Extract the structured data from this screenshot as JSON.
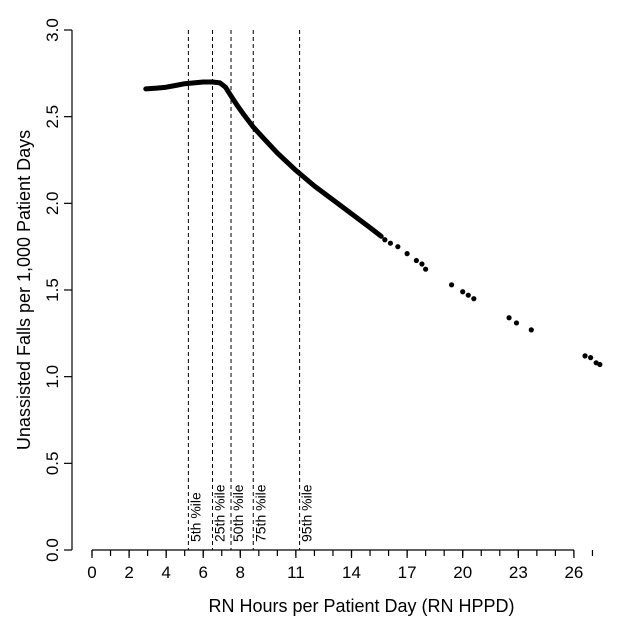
{
  "chart_data": {
    "type": "line",
    "title": "",
    "xlabel": "RN Hours per Patient Day (RN HPPD)",
    "ylabel": "Unassisted Falls per 1,000 Patient Days",
    "xlim": [
      0,
      28
    ],
    "ylim": [
      0.0,
      3.0
    ],
    "x_ticks": [
      "0",
      "2",
      "4",
      "6",
      "8",
      "11",
      "14",
      "17",
      "20",
      "23",
      "26"
    ],
    "x_tick_values": [
      0,
      2,
      4,
      6,
      8,
      11,
      14,
      17,
      20,
      23,
      26
    ],
    "y_ticks": [
      "0.0",
      "0.5",
      "1.0",
      "1.5",
      "2.0",
      "2.5",
      "3.0"
    ],
    "y_tick_values": [
      0.0,
      0.5,
      1.0,
      1.5,
      2.0,
      2.5,
      3.0
    ],
    "grid": false,
    "percentiles": [
      {
        "label": "5th %ile",
        "x": 5.2
      },
      {
        "label": "25th %ile",
        "x": 6.5
      },
      {
        "label": "50th %ile",
        "x": 7.5
      },
      {
        "label": "75th %ile",
        "x": 8.7
      },
      {
        "label": "95th %ile",
        "x": 11.2
      }
    ],
    "series": [
      {
        "curve": {
          "x": [
            2.9,
            3.5,
            4.0,
            4.5,
            5.0,
            5.5,
            6.0,
            6.5,
            6.9,
            7.2,
            7.5,
            7.8,
            8.2,
            8.7,
            9.3,
            10.0,
            11.0,
            12.0,
            13.0,
            14.0,
            15.0,
            15.6
          ],
          "y": [
            2.66,
            2.665,
            2.67,
            2.68,
            2.69,
            2.695,
            2.7,
            2.7,
            2.695,
            2.67,
            2.62,
            2.57,
            2.51,
            2.44,
            2.37,
            2.29,
            2.19,
            2.1,
            2.02,
            1.94,
            1.86,
            1.81
          ]
        },
        "points": {
          "x": [
            15.8,
            16.1,
            16.5,
            17.0,
            17.5,
            17.8,
            18.0,
            19.4,
            20.0,
            20.3,
            20.6,
            22.5,
            22.9,
            23.7,
            26.6,
            26.9,
            27.2,
            27.4
          ],
          "y": [
            1.79,
            1.77,
            1.75,
            1.71,
            1.67,
            1.65,
            1.62,
            1.53,
            1.49,
            1.47,
            1.45,
            1.34,
            1.31,
            1.27,
            1.12,
            1.11,
            1.08,
            1.07
          ]
        }
      }
    ]
  }
}
